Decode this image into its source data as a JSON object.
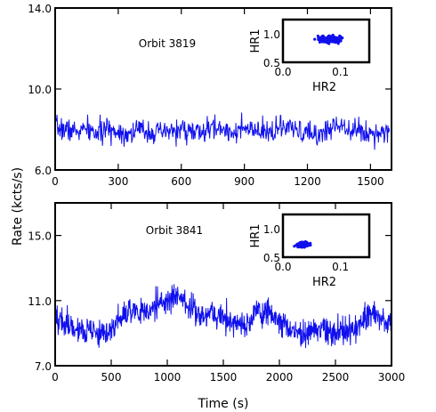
{
  "figure": {
    "ylabel": "Rate (kcts/s)",
    "xlabel": "Time (s)"
  },
  "chart_data": [
    {
      "type": "line",
      "annotation": "Orbit 3819",
      "xlim": [
        0,
        1600
      ],
      "ylim": [
        6.0,
        14.0
      ],
      "xticks": [
        "0",
        "300",
        "600",
        "900",
        "1200",
        "1500"
      ],
      "xtick_values": [
        0,
        300,
        600,
        900,
        1200,
        1500
      ],
      "yticks": [
        "6.0",
        "10.0",
        "14.0"
      ],
      "ytick_values": [
        6.0,
        10.0,
        14.0
      ],
      "line_color": "#1010ee",
      "series": [
        {
          "x": [
            0,
            50,
            100,
            150,
            200,
            250,
            300,
            350,
            400,
            450,
            500,
            550,
            600,
            650,
            700,
            750,
            800,
            850,
            900,
            950,
            1000,
            1050,
            1100,
            1150,
            1200,
            1250,
            1300,
            1350,
            1400,
            1450,
            1500,
            1550,
            1590
          ],
          "values": [
            8.1,
            8.0,
            7.9,
            8.0,
            7.8,
            8.0,
            7.9,
            7.8,
            8.0,
            7.9,
            7.8,
            7.9,
            8.0,
            7.9,
            7.8,
            8.1,
            8.0,
            7.9,
            8.0,
            7.9,
            7.8,
            8.0,
            8.1,
            7.9,
            7.8,
            7.7,
            8.0,
            8.3,
            8.1,
            7.9,
            7.8,
            7.9,
            8.0
          ]
        }
      ],
      "noise": 0.28,
      "inset": {
        "type": "scatter",
        "xlabel": "HR2",
        "ylabel": "HR1",
        "xlim": [
          0,
          0.15
        ],
        "ylim": [
          0.5,
          1.25
        ],
        "xticks": [
          "0.0",
          "0.1"
        ],
        "xtick_values": [
          0.0,
          0.1
        ],
        "yticks": [
          "0.5",
          "1.0"
        ],
        "ytick_values": [
          0.5,
          1.0
        ],
        "cluster_center": [
          0.08,
          0.9
        ],
        "cluster_spread": [
          0.017,
          0.045
        ]
      }
    },
    {
      "type": "line",
      "annotation": "Orbit 3841",
      "xlim": [
        0,
        3000
      ],
      "ylim": [
        7.0,
        17.0
      ],
      "xticks": [
        "0",
        "500",
        "1000",
        "1500",
        "2000",
        "2500",
        "3000"
      ],
      "xtick_values": [
        0,
        500,
        1000,
        1500,
        2000,
        2500,
        3000
      ],
      "yticks": [
        "7.0",
        "11.0",
        "15.0"
      ],
      "ytick_values": [
        7.0,
        11.0,
        15.0
      ],
      "line_color": "#1010ee",
      "series": [
        {
          "x": [
            0,
            100,
            200,
            300,
            400,
            500,
            600,
            700,
            800,
            900,
            1000,
            1100,
            1200,
            1300,
            1400,
            1500,
            1600,
            1700,
            1800,
            1900,
            2000,
            2100,
            2200,
            2300,
            2400,
            2500,
            2600,
            2700,
            2800,
            2900,
            3000
          ],
          "values": [
            10.0,
            9.6,
            9.3,
            9.0,
            8.9,
            9.2,
            10.0,
            10.4,
            10.2,
            10.8,
            11.0,
            11.2,
            10.6,
            10.2,
            10.3,
            9.9,
            9.6,
            9.4,
            10.5,
            10.2,
            9.8,
            9.2,
            8.9,
            9.1,
            9.2,
            9.0,
            9.1,
            9.5,
            10.1,
            10.0,
            9.7
          ]
        }
      ],
      "noise": 0.42,
      "inset": {
        "type": "scatter",
        "xlabel": "HR2",
        "ylabel": "HR1",
        "xlim": [
          0,
          0.15
        ],
        "ylim": [
          0.5,
          1.25
        ],
        "xticks": [
          "0.0",
          "0.1"
        ],
        "xtick_values": [
          0.0,
          0.1
        ],
        "yticks": [
          "0.5",
          "1.0"
        ],
        "ytick_values": [
          0.5,
          1.0
        ],
        "cluster_center": [
          0.035,
          0.72
        ],
        "cluster_spread": [
          0.009,
          0.035
        ]
      }
    }
  ]
}
